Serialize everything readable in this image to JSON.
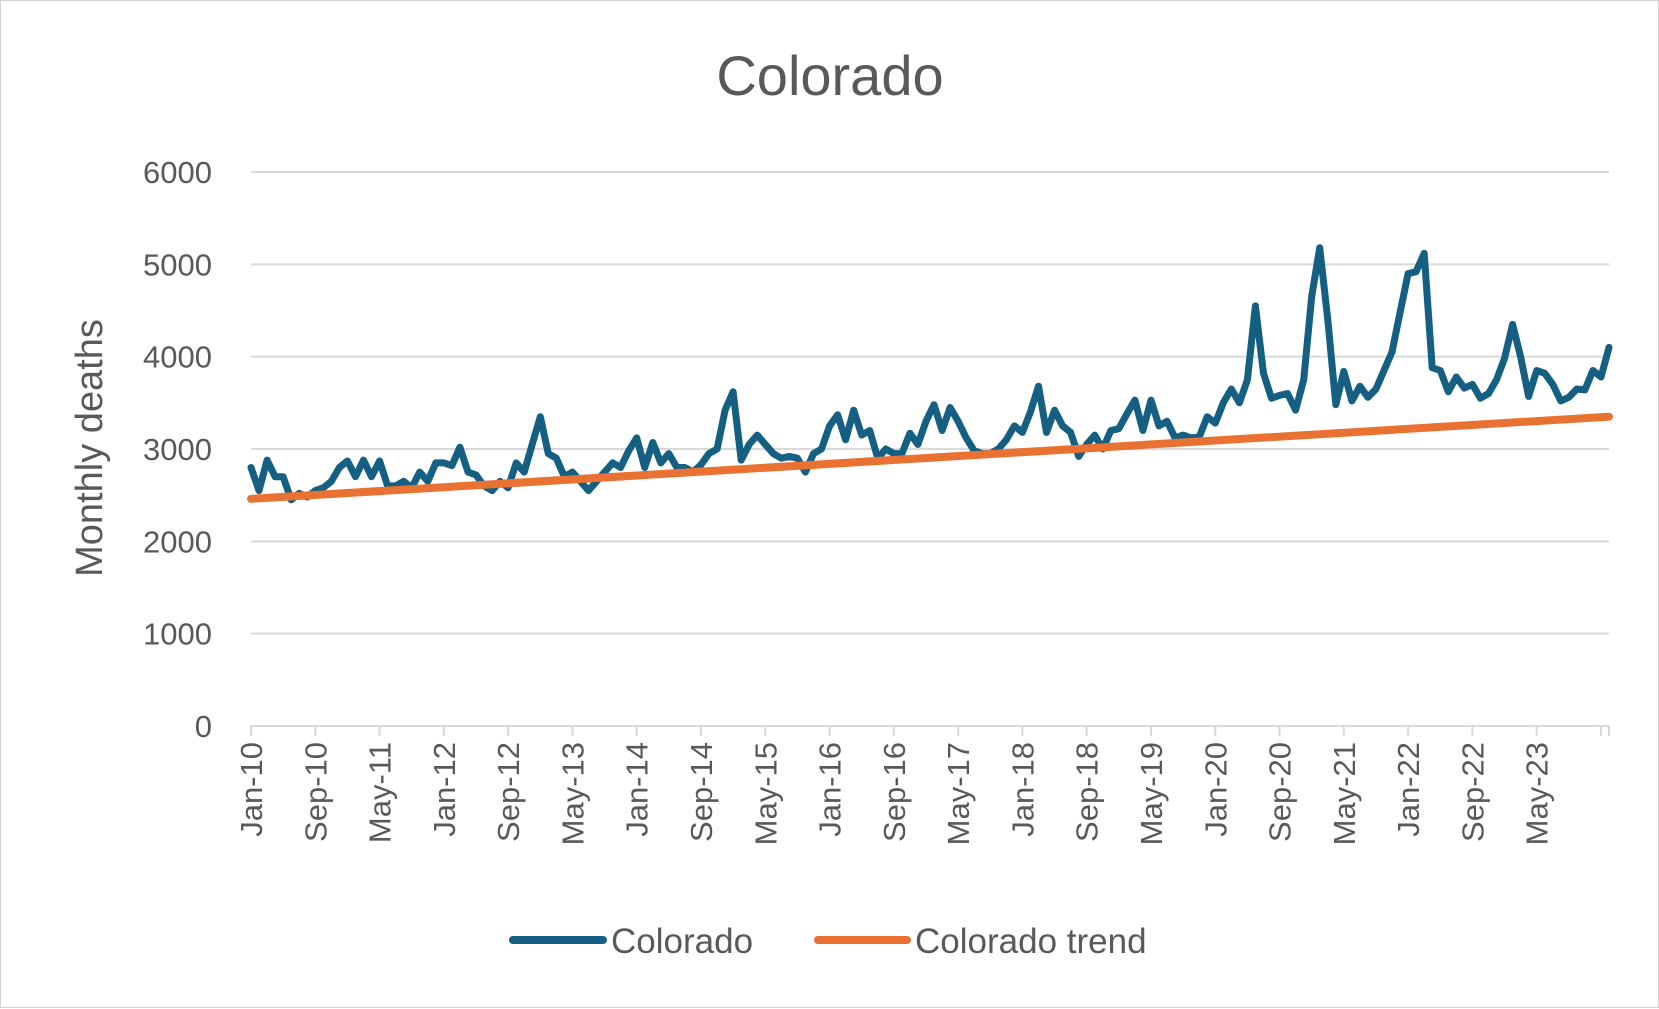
{
  "chart_data": {
    "type": "line",
    "title": "Colorado",
    "xlabel": "",
    "ylabel": "Monthly deaths",
    "ylim": [
      0,
      6000
    ],
    "yticks": [
      "0",
      "1000",
      "2000",
      "3000",
      "4000",
      "5000",
      "6000"
    ],
    "xtick_labels": [
      "Jan-10",
      "Sep-10",
      "May-11",
      "Jan-12",
      "Sep-12",
      "May-13",
      "Jan-14",
      "Sep-14",
      "May-15",
      "Jan-16",
      "Sep-16",
      "May-17",
      "Jan-18",
      "Sep-18",
      "May-19",
      "Jan-20",
      "Sep-20",
      "May-21",
      "Jan-22",
      "Sep-22",
      "May-23"
    ],
    "x_start": "Jan-10",
    "x_end": "Dec-23",
    "grid": true,
    "legend_position": "bottom",
    "series": [
      {
        "name": "Colorado",
        "color": "#156082",
        "values": [
          2800,
          2550,
          2880,
          2700,
          2700,
          2450,
          2520,
          2480,
          2550,
          2580,
          2650,
          2800,
          2870,
          2700,
          2880,
          2700,
          2870,
          2600,
          2600,
          2650,
          2580,
          2750,
          2650,
          2850,
          2850,
          2820,
          3020,
          2750,
          2720,
          2600,
          2550,
          2650,
          2580,
          2850,
          2750,
          3050,
          3350,
          2950,
          2900,
          2700,
          2750,
          2650,
          2550,
          2650,
          2750,
          2850,
          2800,
          2980,
          3120,
          2800,
          3070,
          2850,
          2950,
          2800,
          2800,
          2750,
          2830,
          2950,
          3000,
          3420,
          3620,
          2880,
          3050,
          3150,
          3050,
          2950,
          2900,
          2920,
          2900,
          2750,
          2950,
          3000,
          3250,
          3370,
          3100,
          3420,
          3150,
          3200,
          2900,
          3000,
          2950,
          2950,
          3170,
          3050,
          3300,
          3480,
          3200,
          3450,
          3300,
          3120,
          2980,
          2950,
          2950,
          3000,
          3100,
          3250,
          3180,
          3400,
          3680,
          3180,
          3420,
          3250,
          3180,
          2920,
          3050,
          3150,
          3000,
          3200,
          3220,
          3380,
          3530,
          3200,
          3530,
          3250,
          3300,
          3120,
          3150,
          3120,
          3130,
          3350,
          3280,
          3500,
          3650,
          3500,
          3750,
          4550,
          3820,
          3550,
          3580,
          3600,
          3420,
          3750,
          4650,
          5180,
          4400,
          3480,
          3840,
          3520,
          3680,
          3560,
          3650,
          3850,
          4050,
          4480,
          4900,
          4920,
          5120,
          3880,
          3850,
          3620,
          3780,
          3660,
          3700,
          3550,
          3600,
          3750,
          3980,
          4350,
          4000,
          3570,
          3850,
          3820,
          3700,
          3520,
          3560,
          3650,
          3640,
          3850,
          3780,
          4100
        ]
      },
      {
        "name": "Colorado trend",
        "color": "#E97132",
        "values_start": 2460,
        "values_end": 3350
      }
    ]
  },
  "legend": {
    "items": [
      "Colorado",
      "Colorado trend"
    ]
  }
}
